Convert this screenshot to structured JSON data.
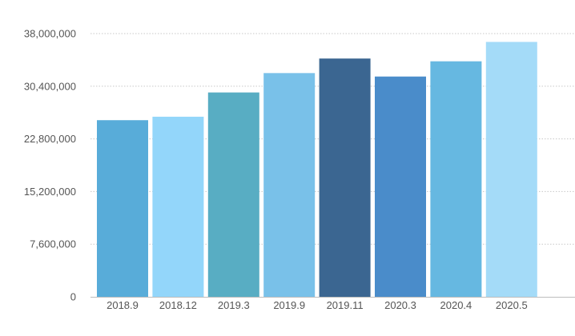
{
  "chart_data": {
    "type": "bar",
    "title": "",
    "xlabel": "",
    "ylabel": "",
    "categories": [
      "2018.9",
      "2018.12",
      "2019.3",
      "2019.9",
      "2019.11",
      "2020.3",
      "2020.4",
      "2020.5"
    ],
    "values": [
      25500000,
      26000000,
      29500000,
      32300000,
      34400000,
      31800000,
      34000000,
      36800000
    ],
    "colors": [
      "#58acd9",
      "#93d6fa",
      "#58adc3",
      "#79c1e9",
      "#3b6691",
      "#4a8cca",
      "#66b8e1",
      "#a4dbf8"
    ],
    "ylim": [
      0,
      38000000
    ],
    "yticks": [
      0,
      7600000,
      15200000,
      22800000,
      30400000,
      38000000
    ],
    "ytick_labels": [
      "0",
      "7,600,000",
      "15,200,000",
      "22,800,000",
      "30,400,000",
      "38,000,000"
    ],
    "grid": true,
    "legend": "none"
  }
}
